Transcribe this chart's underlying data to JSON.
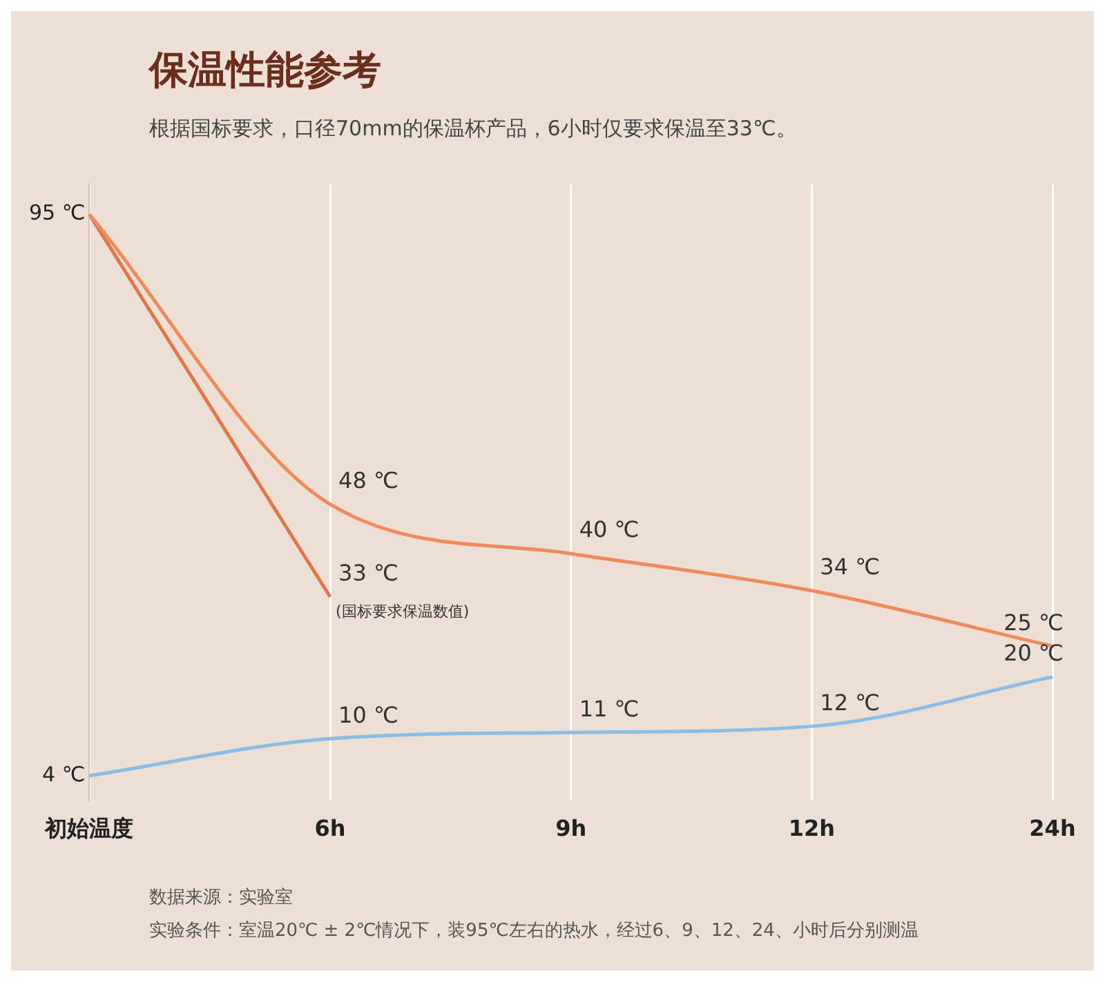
{
  "chart_data": {
    "type": "line",
    "title": "保温性能参考",
    "subtitle": "根据国标要求，口径70mm的保温杯产品，6小时仅要求保温至33℃。",
    "categories": [
      "初始温度",
      "6h",
      "9h",
      "12h",
      "24h"
    ],
    "series": [
      {
        "color": "#ee8a5c",
        "values": [
          95,
          48,
          40,
          34,
          25
        ],
        "value_labels": [
          null,
          "48 ℃",
          "40 ℃",
          "34 ℃",
          "25 ℃"
        ]
      },
      {
        "color": "#e0774a",
        "values": [
          95,
          33,
          null,
          null,
          null
        ],
        "value_labels": [
          null,
          "33 ℃",
          null,
          null,
          null
        ]
      },
      {
        "color": "#8dbde6",
        "values": [
          4,
          10,
          11,
          12,
          20
        ],
        "value_labels": [
          null,
          "10 ℃",
          "11 ℃",
          "12 ℃",
          "20 ℃"
        ]
      }
    ],
    "ylim": [
      0,
      100
    ],
    "yticks": [
      {
        "value": 4,
        "label": "4 ℃"
      },
      {
        "value": 95,
        "label": "95 ℃"
      }
    ],
    "grid": "x",
    "legend": false,
    "marker": "none",
    "line_style": "solid",
    "annotations": [
      {
        "text": "(国标要求保温数值)",
        "x": "6h",
        "y": 33
      },
      "数据来源：实验室",
      "实验条件：室温20℃ ± 2℃情况下，装95℃左右的热水，经过6、9、12、24、小时后分别测温"
    ]
  }
}
